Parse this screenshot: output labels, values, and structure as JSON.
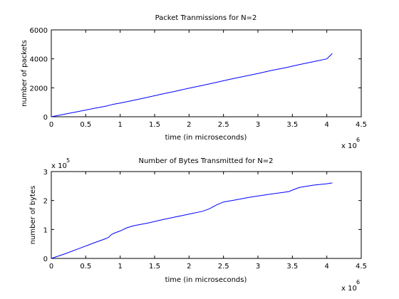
{
  "chart_data": [
    {
      "type": "line",
      "title": "Packet Tranmissions for N=2",
      "xlabel": "time (in microseconds)",
      "ylabel": "number of packets",
      "xlim": [
        0,
        4.5
      ],
      "ylim": [
        0,
        6000
      ],
      "x_multiplier": "x 10",
      "x_multiplier_exp": "6",
      "y_multiplier": "",
      "y_multiplier_exp": "",
      "x_ticks": [
        "0",
        "0.5",
        "1",
        "1.5",
        "2",
        "2.5",
        "3",
        "3.5",
        "4",
        "4.5"
      ],
      "y_ticks": [
        "0",
        "2000",
        "4000",
        "6000"
      ],
      "color": "#0000ff",
      "grid": false,
      "series": [
        {
          "x": [
            0,
            0.2,
            0.4,
            0.6,
            0.8,
            0.85,
            0.9,
            1.0,
            1.2,
            1.4,
            1.6,
            1.8,
            2.0,
            2.2,
            2.4,
            2.6,
            2.8,
            3.0,
            3.2,
            3.4,
            3.6,
            3.8,
            4.0,
            4.08
          ],
          "y": [
            0,
            180,
            370,
            560,
            740,
            800,
            860,
            950,
            1140,
            1350,
            1560,
            1760,
            1970,
            2170,
            2380,
            2590,
            2790,
            2990,
            3200,
            3390,
            3600,
            3800,
            4000,
            4370
          ]
        }
      ]
    },
    {
      "type": "line",
      "title": "Number of Bytes Transmitted for N=2",
      "xlabel": "time (in microseconds)",
      "ylabel": "number of bytes",
      "xlim": [
        0,
        4.5
      ],
      "ylim": [
        0,
        3
      ],
      "x_multiplier": "x 10",
      "x_multiplier_exp": "6",
      "y_multiplier": "x 10",
      "y_multiplier_exp": "5",
      "x_ticks": [
        "0",
        "0.5",
        "1",
        "1.5",
        "2",
        "2.5",
        "3",
        "3.5",
        "4",
        "4.5"
      ],
      "y_ticks": [
        "0",
        "1",
        "2",
        "3"
      ],
      "color": "#0000ff",
      "grid": false,
      "series": [
        {
          "x": [
            0,
            0.2,
            0.4,
            0.6,
            0.8,
            0.84,
            0.86,
            0.9,
            1.0,
            1.1,
            1.2,
            1.4,
            1.6,
            1.8,
            2.0,
            2.2,
            2.3,
            2.4,
            2.5,
            2.7,
            2.9,
            3.1,
            3.3,
            3.45,
            3.5,
            3.6,
            3.8,
            4.0,
            4.08
          ],
          "y": [
            0,
            0.16,
            0.34,
            0.52,
            0.69,
            0.74,
            0.8,
            0.86,
            0.95,
            1.06,
            1.13,
            1.22,
            1.33,
            1.43,
            1.53,
            1.63,
            1.72,
            1.85,
            1.95,
            2.03,
            2.12,
            2.19,
            2.26,
            2.31,
            2.36,
            2.45,
            2.53,
            2.58,
            2.61
          ]
        }
      ]
    }
  ]
}
